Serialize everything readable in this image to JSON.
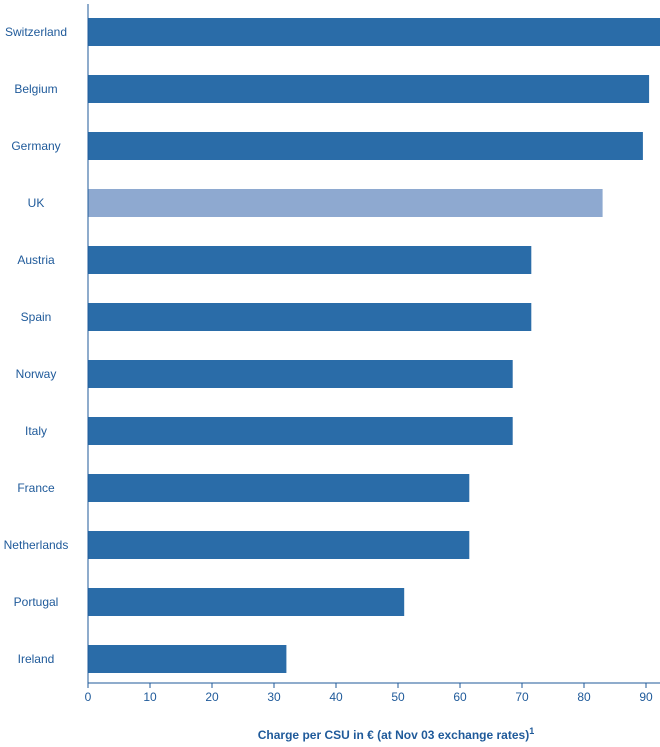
{
  "chart_data": {
    "type": "bar",
    "orientation": "horizontal",
    "categories": [
      "Switzerland",
      "Belgium",
      "Germany",
      "UK",
      "Austria",
      "Spain",
      "Norway",
      "Italy",
      "France",
      "Netherlands",
      "Portugal",
      "Ireland"
    ],
    "values": [
      92.5,
      90.5,
      89.5,
      83,
      71.5,
      71.5,
      68.5,
      68.5,
      61.5,
      61.5,
      51,
      32
    ],
    "highlight": "UK",
    "xlabel": "Charge per CSU in € (at Nov 03 exchange rates)",
    "xlabel_superscript": "1",
    "xlim": [
      0,
      92.5
    ],
    "xticks": [
      0,
      10,
      20,
      30,
      40,
      50,
      60,
      70,
      80,
      90
    ],
    "grid": false,
    "colors": {
      "bar": "#2a6ca8",
      "highlight_bar": "#8ea9d0",
      "text": "#1f5a9a"
    }
  }
}
